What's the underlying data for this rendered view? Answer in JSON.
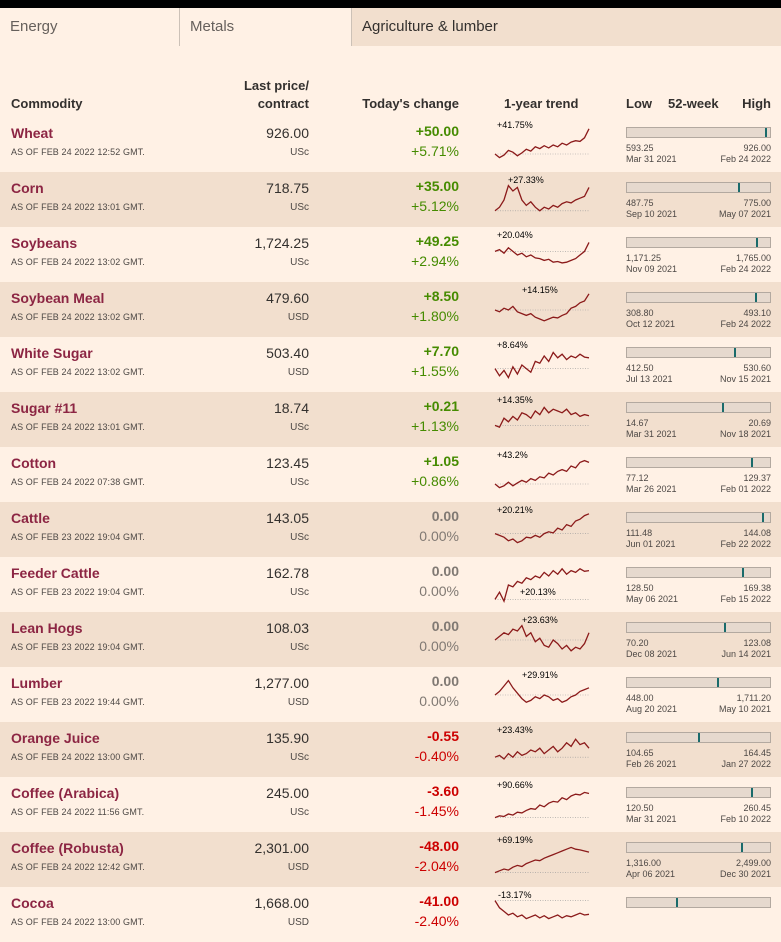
{
  "tabs": [
    "Energy",
    "Metals",
    "Agriculture & lumber"
  ],
  "headers": {
    "commodity": "Commodity",
    "last_price_1": "Last price/",
    "last_price_2": "contract",
    "todays_change": "Today's change",
    "trend": "1-year trend",
    "low": "Low",
    "week52": "52-week",
    "high": "High"
  },
  "rows": [
    {
      "name": "Wheat",
      "asof": "AS OF FEB 24 2022 12:52 GMT.",
      "price": "926.00",
      "unit": "USc",
      "change": "+50.00",
      "pct": "+5.71%",
      "dir": "up",
      "trend_label": "+41.75%",
      "low": "593.25",
      "low_date": "Mar 31 2021",
      "high": "926.00",
      "high_date": "Feb 24 2022",
      "pos": 0.99,
      "trend": [
        0.25,
        0.15,
        0.22,
        0.35,
        0.3,
        0.2,
        0.28,
        0.38,
        0.33,
        0.45,
        0.4,
        0.48,
        0.42,
        0.5,
        0.45,
        0.55,
        0.5,
        0.58,
        0.62,
        0.6,
        0.7,
        0.95
      ]
    },
    {
      "name": "Corn",
      "asof": "AS OF FEB 24 2022 13:01 GMT.",
      "price": "718.75",
      "unit": "USc",
      "change": "+35.00",
      "pct": "+5.12%",
      "dir": "up",
      "trend_label": "+27.33%",
      "low": "487.75",
      "low_date": "Sep 10 2021",
      "high": "775.00",
      "high_date": "May 07 2021",
      "pos": 0.8,
      "trend": [
        0.2,
        0.3,
        0.5,
        0.9,
        0.75,
        0.85,
        0.5,
        0.35,
        0.45,
        0.3,
        0.2,
        0.3,
        0.25,
        0.35,
        0.3,
        0.4,
        0.45,
        0.42,
        0.5,
        0.55,
        0.6,
        0.85
      ]
    },
    {
      "name": "Soybeans",
      "asof": "AS OF FEB 24 2022 13:02 GMT.",
      "price": "1,724.25",
      "unit": "USc",
      "change": "+49.25",
      "pct": "+2.94%",
      "dir": "up",
      "trend_label": "+20.04%",
      "low": "1,171.25",
      "low_date": "Nov 09 2021",
      "high": "1,765.00",
      "high_date": "Feb 24 2022",
      "pos": 0.93,
      "trend": [
        0.6,
        0.65,
        0.55,
        0.7,
        0.6,
        0.5,
        0.55,
        0.45,
        0.5,
        0.42,
        0.4,
        0.35,
        0.38,
        0.3,
        0.32,
        0.28,
        0.3,
        0.35,
        0.4,
        0.5,
        0.6,
        0.85
      ]
    },
    {
      "name": "Soybean Meal",
      "asof": "AS OF FEB 24 2022 13:02 GMT.",
      "price": "479.60",
      "unit": "USD",
      "change": "+8.50",
      "pct": "+1.80%",
      "dir": "up",
      "trend_label": "+14.15%",
      "low": "308.80",
      "low_date": "Oct 12 2021",
      "high": "493.10",
      "high_date": "Feb 24 2022",
      "pos": 0.92,
      "trend": [
        0.5,
        0.45,
        0.55,
        0.5,
        0.6,
        0.45,
        0.4,
        0.35,
        0.4,
        0.3,
        0.25,
        0.2,
        0.25,
        0.3,
        0.28,
        0.35,
        0.4,
        0.55,
        0.6,
        0.7,
        0.75,
        0.95
      ]
    },
    {
      "name": "White Sugar",
      "asof": "AS OF FEB 24 2022 13:02 GMT.",
      "price": "503.40",
      "unit": "USD",
      "change": "+7.70",
      "pct": "+1.55%",
      "dir": "up",
      "trend_label": "+8.64%",
      "low": "412.50",
      "low_date": "Jul 13 2021",
      "high": "530.60",
      "high_date": "Nov 15 2021",
      "pos": 0.77,
      "trend": [
        0.4,
        0.2,
        0.35,
        0.15,
        0.45,
        0.25,
        0.5,
        0.4,
        0.3,
        0.6,
        0.55,
        0.75,
        0.6,
        0.85,
        0.7,
        0.8,
        0.65,
        0.75,
        0.7,
        0.8,
        0.72,
        0.7
      ]
    },
    {
      "name": "Sugar #11",
      "asof": "AS OF FEB 24 2022 13:01 GMT.",
      "price": "18.74",
      "unit": "USc",
      "change": "+0.21",
      "pct": "+1.13%",
      "dir": "up",
      "trend_label": "+14.35%",
      "low": "14.67",
      "low_date": "Mar 31 2021",
      "high": "20.69",
      "high_date": "Nov 18 2021",
      "pos": 0.68,
      "trend": [
        0.35,
        0.3,
        0.55,
        0.45,
        0.6,
        0.5,
        0.7,
        0.65,
        0.55,
        0.75,
        0.65,
        0.85,
        0.7,
        0.8,
        0.75,
        0.7,
        0.8,
        0.65,
        0.7,
        0.6,
        0.65,
        0.62
      ]
    },
    {
      "name": "Cotton",
      "asof": "AS OF FEB 24 2022 07:38 GMT.",
      "price": "123.45",
      "unit": "USc",
      "change": "+1.05",
      "pct": "+0.86%",
      "dir": "up",
      "trend_label": "+43.2%",
      "low": "77.12",
      "low_date": "Mar 26 2021",
      "high": "129.37",
      "high_date": "Feb 01 2022",
      "pos": 0.89,
      "trend": [
        0.25,
        0.15,
        0.2,
        0.3,
        0.2,
        0.28,
        0.35,
        0.3,
        0.4,
        0.35,
        0.45,
        0.42,
        0.55,
        0.5,
        0.6,
        0.65,
        0.6,
        0.75,
        0.7,
        0.85,
        0.9,
        0.85
      ]
    },
    {
      "name": "Cattle",
      "asof": "AS OF FEB 23 2022 19:04 GMT.",
      "price": "143.05",
      "unit": "USc",
      "change": "0.00",
      "pct": "0.00%",
      "dir": "flat",
      "trend_label": "+20.21%",
      "low": "111.48",
      "low_date": "Jun 01 2021",
      "high": "144.08",
      "high_date": "Feb 22 2022",
      "pos": 0.97,
      "trend": [
        0.4,
        0.35,
        0.3,
        0.2,
        0.25,
        0.15,
        0.2,
        0.3,
        0.28,
        0.35,
        0.3,
        0.4,
        0.45,
        0.42,
        0.55,
        0.5,
        0.65,
        0.6,
        0.75,
        0.8,
        0.9,
        0.95
      ]
    },
    {
      "name": "Feeder Cattle",
      "asof": "AS OF FEB 23 2022 19:04 GMT.",
      "price": "162.78",
      "unit": "USc",
      "change": "0.00",
      "pct": "0.00%",
      "dir": "flat",
      "trend_label": "+20.13%",
      "low": "128.50",
      "low_date": "May 06 2021",
      "high": "169.38",
      "high_date": "Feb 15 2022",
      "pos": 0.83,
      "trend": [
        0.1,
        0.3,
        0.05,
        0.5,
        0.45,
        0.6,
        0.55,
        0.7,
        0.65,
        0.75,
        0.7,
        0.85,
        0.75,
        0.9,
        0.8,
        0.95,
        0.8,
        0.9,
        0.85,
        0.95,
        0.88,
        0.9
      ]
    },
    {
      "name": "Lean Hogs",
      "asof": "AS OF FEB 23 2022 19:04 GMT.",
      "price": "108.03",
      "unit": "USc",
      "change": "0.00",
      "pct": "0.00%",
      "dir": "flat",
      "trend_label": "+23.63%",
      "low": "70.20",
      "low_date": "Dec 08 2021",
      "high": "123.08",
      "high_date": "Jun 14 2021",
      "pos": 0.7,
      "trend": [
        0.5,
        0.6,
        0.7,
        0.65,
        0.8,
        0.75,
        0.9,
        0.6,
        0.7,
        0.45,
        0.55,
        0.35,
        0.3,
        0.5,
        0.4,
        0.25,
        0.35,
        0.2,
        0.3,
        0.25,
        0.4,
        0.7
      ]
    },
    {
      "name": "Lumber",
      "asof": "AS OF FEB 23 2022 19:44 GMT.",
      "price": "1,277.00",
      "unit": "USD",
      "change": "0.00",
      "pct": "0.00%",
      "dir": "flat",
      "trend_label": "+29.91%",
      "low": "448.00",
      "low_date": "Aug 20 2021",
      "high": "1,711.20",
      "high_date": "May 10 2021",
      "pos": 0.65,
      "trend": [
        0.5,
        0.6,
        0.75,
        0.9,
        0.7,
        0.55,
        0.4,
        0.3,
        0.35,
        0.45,
        0.4,
        0.5,
        0.45,
        0.35,
        0.4,
        0.3,
        0.35,
        0.45,
        0.5,
        0.6,
        0.65,
        0.7
      ]
    },
    {
      "name": "Orange Juice",
      "asof": "AS OF FEB 24 2022 13:00 GMT.",
      "price": "135.90",
      "unit": "USc",
      "change": "-0.55",
      "pct": "-0.40%",
      "dir": "down",
      "trend_label": "+23.43%",
      "low": "104.65",
      "low_date": "Feb 26 2021",
      "high": "164.45",
      "high_date": "Jan 27 2022",
      "pos": 0.51,
      "trend": [
        0.3,
        0.35,
        0.25,
        0.4,
        0.3,
        0.45,
        0.35,
        0.4,
        0.5,
        0.45,
        0.55,
        0.4,
        0.5,
        0.6,
        0.45,
        0.55,
        0.7,
        0.6,
        0.8,
        0.65,
        0.7,
        0.55
      ]
    },
    {
      "name": "Coffee (Arabica)",
      "asof": "AS OF FEB 24 2022 11:56 GMT.",
      "price": "245.00",
      "unit": "USc",
      "change": "-3.60",
      "pct": "-1.45%",
      "dir": "down",
      "trend_label": "+90.66%",
      "low": "120.50",
      "low_date": "Mar 31 2021",
      "high": "260.45",
      "high_date": "Feb 10 2022",
      "pos": 0.89,
      "trend": [
        0.15,
        0.2,
        0.18,
        0.25,
        0.22,
        0.3,
        0.28,
        0.35,
        0.4,
        0.38,
        0.5,
        0.45,
        0.55,
        0.6,
        0.58,
        0.7,
        0.65,
        0.75,
        0.8,
        0.78,
        0.85,
        0.82
      ]
    },
    {
      "name": "Coffee (Robusta)",
      "asof": "AS OF FEB 24 2022 12:42 GMT.",
      "price": "2,301.00",
      "unit": "USD",
      "change": "-48.00",
      "pct": "-2.04%",
      "dir": "down",
      "trend_label": "+69.19%",
      "low": "1,316.00",
      "low_date": "Apr 06 2021",
      "high": "2,499.00",
      "high_date": "Dec 30 2021",
      "pos": 0.82,
      "trend": [
        0.15,
        0.2,
        0.25,
        0.22,
        0.3,
        0.35,
        0.32,
        0.4,
        0.45,
        0.5,
        0.48,
        0.55,
        0.6,
        0.65,
        0.7,
        0.75,
        0.8,
        0.85,
        0.8,
        0.78,
        0.75,
        0.72
      ]
    },
    {
      "name": "Cocoa",
      "asof": "AS OF FEB 24 2022 13:00 GMT.",
      "price": "1,668.00",
      "unit": "USD",
      "change": "-41.00",
      "pct": "-2.40%",
      "dir": "down",
      "trend_label": "-13.17%",
      "low": "",
      "low_date": "",
      "high": "",
      "high_date": "",
      "pos": 0.35,
      "trend": [
        0.9,
        0.7,
        0.6,
        0.5,
        0.55,
        0.45,
        0.5,
        0.4,
        0.45,
        0.5,
        0.42,
        0.48,
        0.4,
        0.45,
        0.5,
        0.42,
        0.48,
        0.45,
        0.5,
        0.55,
        0.5,
        0.52
      ]
    }
  ]
}
